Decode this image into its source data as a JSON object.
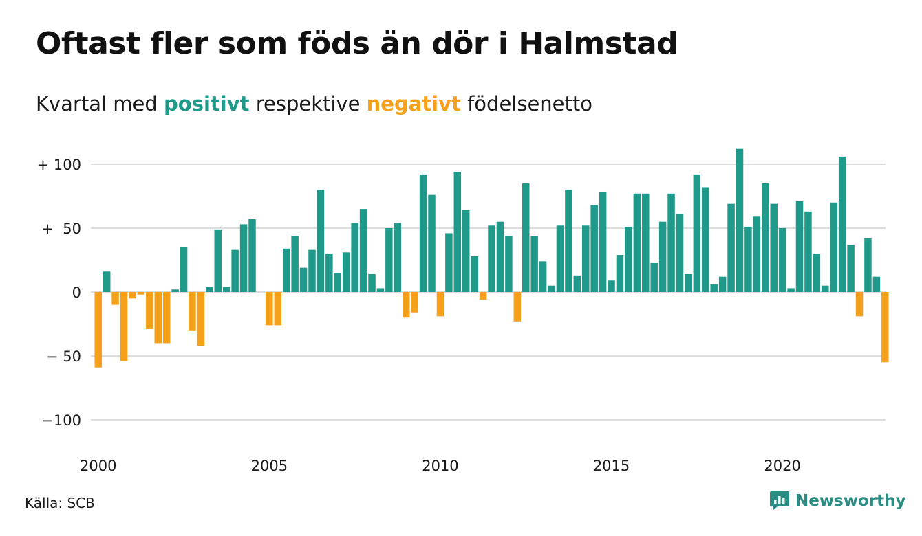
{
  "title": "Oftast fler som föds än dör i Halmstad",
  "subtitle": {
    "prefix": "Kvartal med",
    "positive_word": "positivt",
    "middle": "respektive",
    "negative_word": "negativt",
    "suffix": "födelsenetto"
  },
  "source": "Källa: SCB",
  "brand": {
    "name": "Newsworthy",
    "icon": "newsworthy-logo-icon"
  },
  "colors": {
    "positive": "#1f9a8a",
    "negative": "#f5a01a",
    "grid": "#dddddd"
  },
  "chart_data": {
    "type": "bar",
    "start_year": 2000,
    "quarters_per_year": 4,
    "y_ticks": [
      {
        "value": 100,
        "label": "+ 100"
      },
      {
        "value": 50,
        "label": "+  50"
      },
      {
        "value": 0,
        "label": "0"
      },
      {
        "value": -50,
        "label": "− 50"
      },
      {
        "value": -100,
        "label": "−100"
      }
    ],
    "x_ticks": [
      {
        "year": 2000,
        "label": "2000"
      },
      {
        "year": 2005,
        "label": "2005"
      },
      {
        "year": 2010,
        "label": "2010"
      },
      {
        "year": 2015,
        "label": "2015"
      },
      {
        "year": 2020,
        "label": "2020"
      }
    ],
    "ylim": [
      -110,
      112
    ],
    "values": [
      -59,
      16,
      -10,
      -54,
      -5,
      -2,
      -29,
      -40,
      -40,
      2,
      35,
      -30,
      -42,
      4,
      49,
      4,
      33,
      53,
      57,
      0,
      -26,
      -26,
      34,
      44,
      19,
      33,
      80,
      30,
      15,
      31,
      54,
      65,
      14,
      3,
      50,
      54,
      -20,
      -16,
      92,
      76,
      -19,
      46,
      94,
      64,
      28,
      -6,
      52,
      55,
      44,
      -23,
      85,
      44,
      24,
      5,
      52,
      80,
      13,
      52,
      68,
      78,
      9,
      29,
      51,
      77,
      77,
      23,
      55,
      77,
      61,
      14,
      92,
      82,
      6,
      12,
      69,
      112,
      51,
      59,
      85,
      69,
      50,
      3,
      71,
      63,
      30,
      5,
      70,
      106,
      37,
      -19,
      42,
      12,
      -55
    ]
  }
}
